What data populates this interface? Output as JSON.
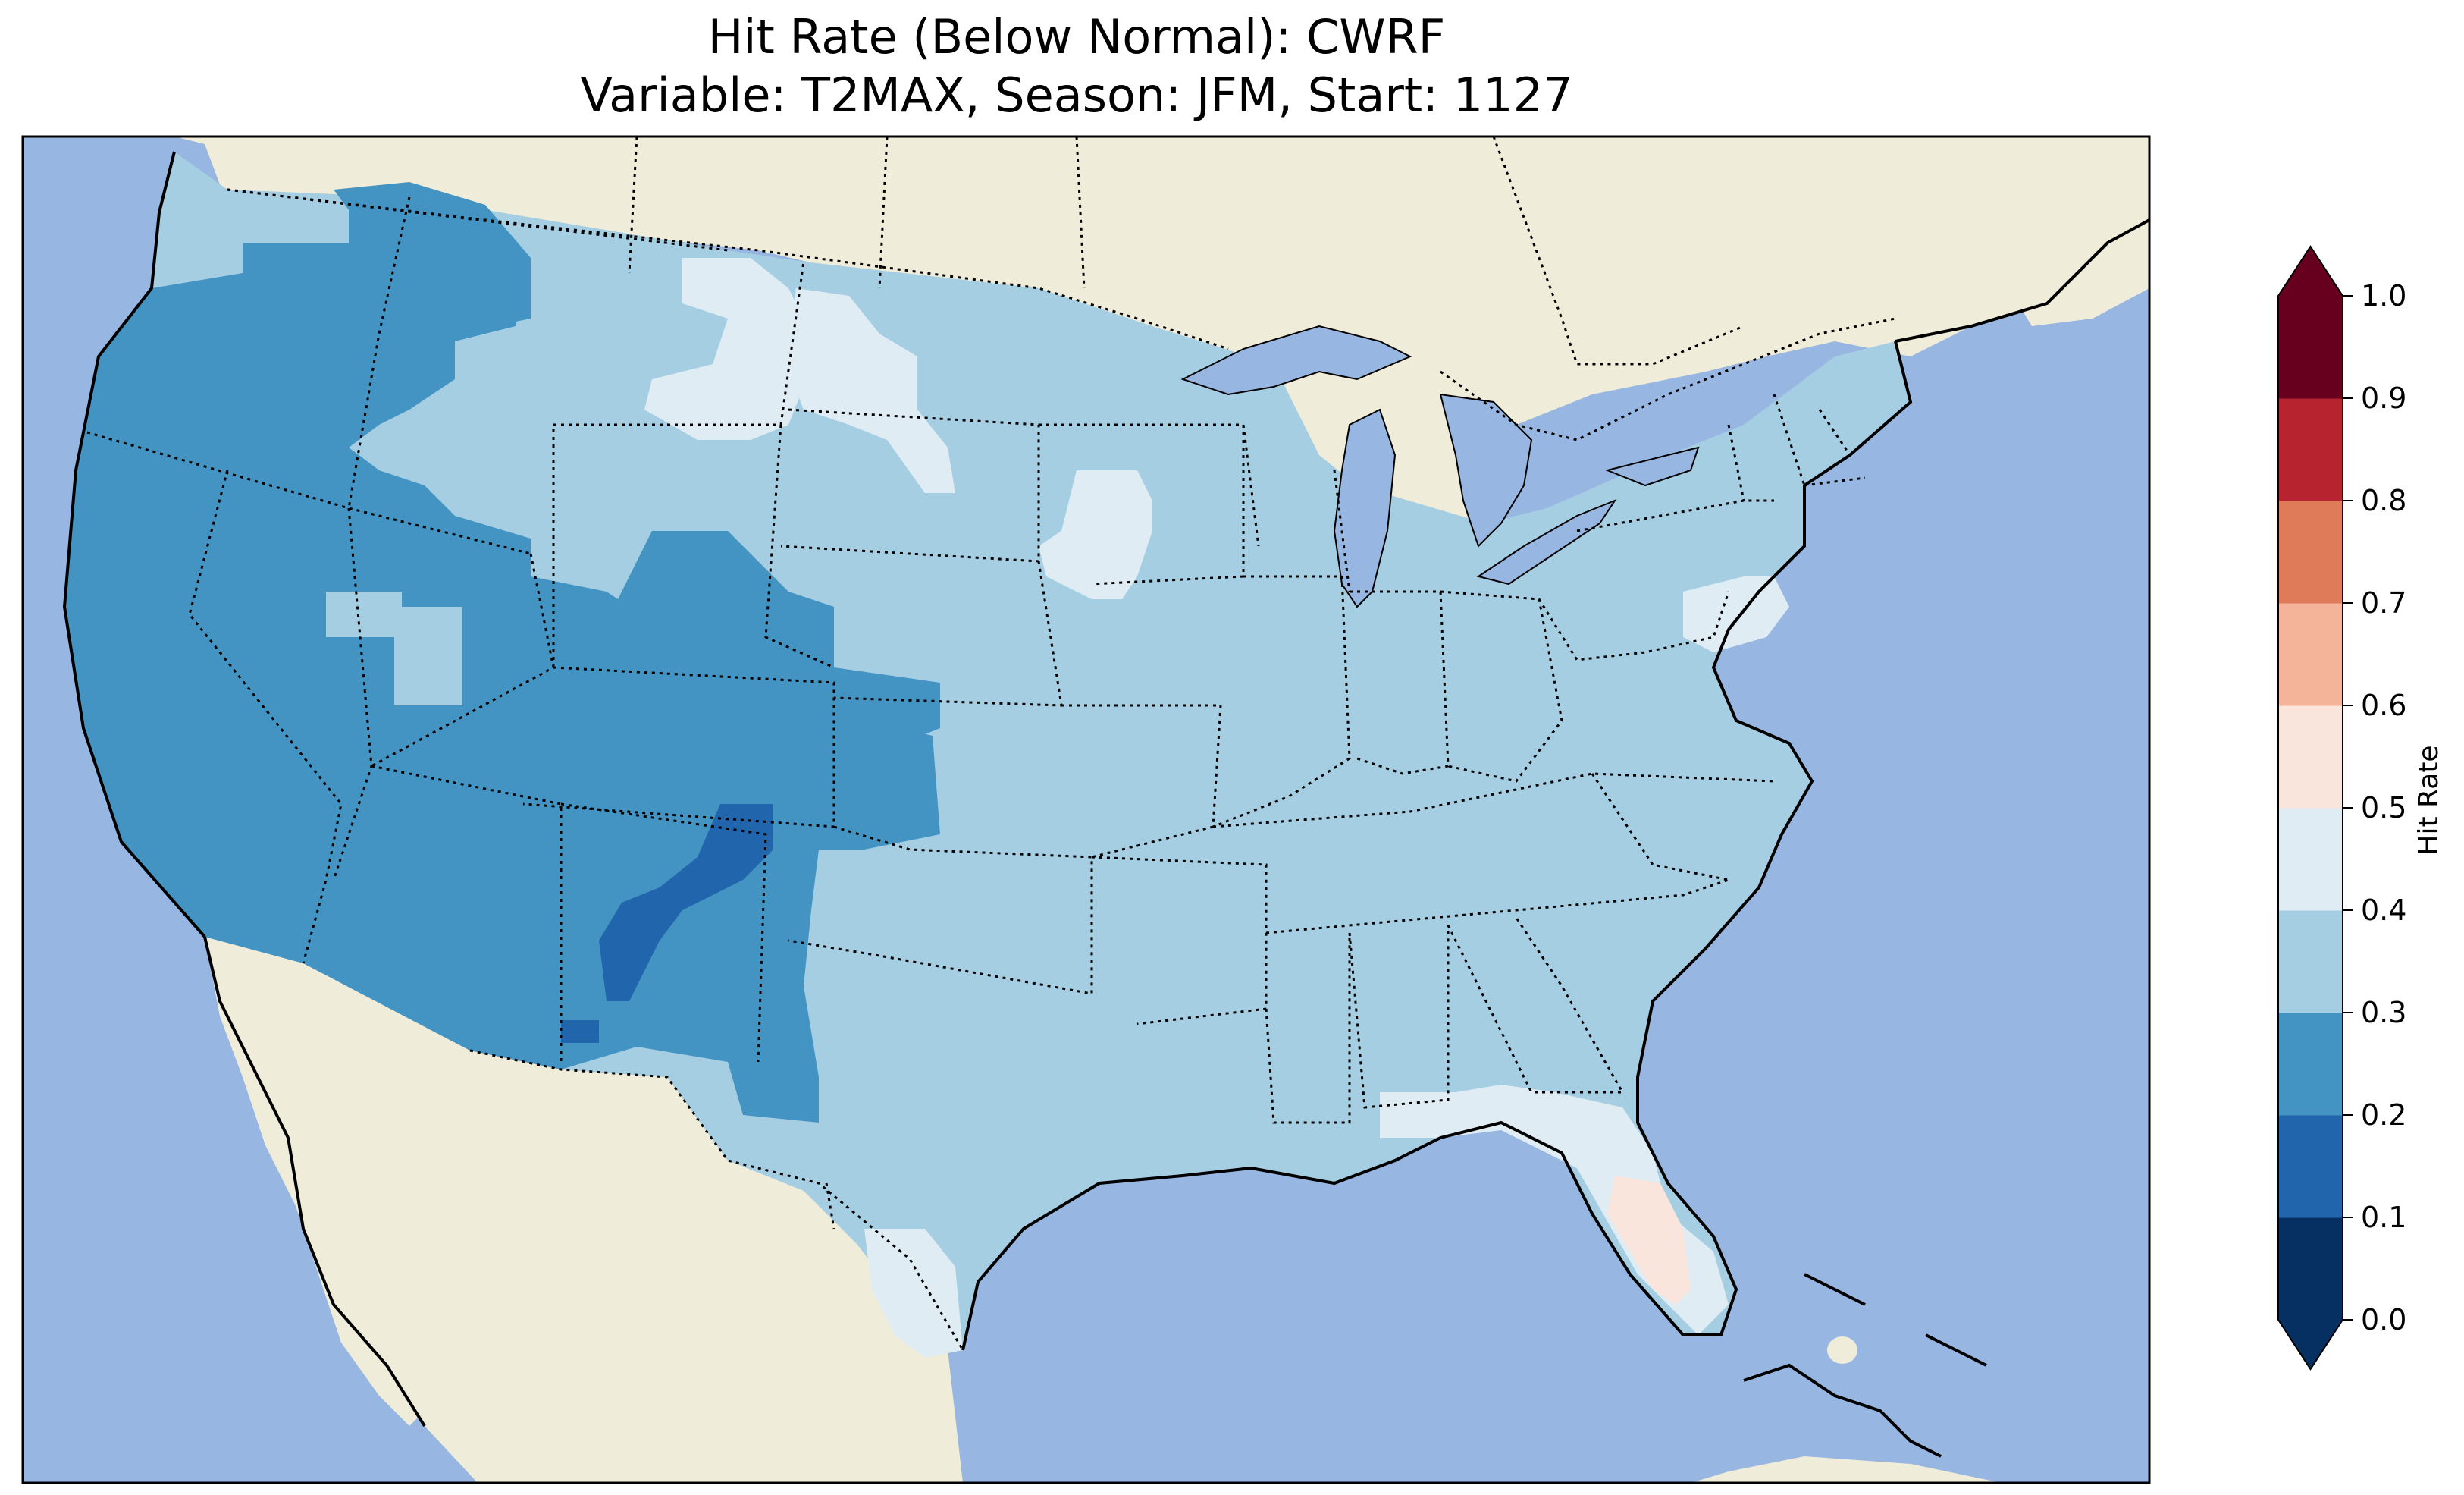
{
  "title": {
    "line1": "Hit Rate (Below Normal): CWRF",
    "line2": "Variable: T2MAX, Season: JFM, Start: 1127"
  },
  "colors": {
    "ocean": "#97b6e1",
    "land": "#efecda",
    "lakes": "#97b6e1",
    "coast": "#000000"
  },
  "colorbar": {
    "label": "Hit Rate",
    "ticks": [
      "0.0",
      "0.1",
      "0.2",
      "0.3",
      "0.4",
      "0.5",
      "0.6",
      "0.7",
      "0.8",
      "0.9",
      "1.0"
    ],
    "bins": [
      {
        "range": [
          0.0,
          0.1
        ],
        "color": "#053061"
      },
      {
        "range": [
          0.1,
          0.2
        ],
        "color": "#2166ac"
      },
      {
        "range": [
          0.2,
          0.3
        ],
        "color": "#4393c3"
      },
      {
        "range": [
          0.3,
          0.4
        ],
        "color": "#a6cee3"
      },
      {
        "range": [
          0.4,
          0.5
        ],
        "color": "#e0ecf4"
      },
      {
        "range": [
          0.5,
          0.6
        ],
        "color": "#f9e5dc"
      },
      {
        "range": [
          0.6,
          0.7
        ],
        "color": "#f4b49a"
      },
      {
        "range": [
          0.7,
          0.8
        ],
        "color": "#e07b5a"
      },
      {
        "range": [
          0.8,
          0.9
        ],
        "color": "#b7232f"
      },
      {
        "range": [
          0.9,
          1.0
        ],
        "color": "#67001f"
      }
    ],
    "under_color": "#053061",
    "over_color": "#67001f"
  },
  "map_regions": [
    {
      "name": "Pacific Northwest / Oregon-California-Nevada-Arizona-Utah",
      "bin": "0.2-0.3"
    },
    {
      "name": "New Mexico core",
      "bin": "0.1-0.2"
    },
    {
      "name": "Great Plains, Midwest, Southeast, Northeast",
      "bin": "0.3-0.4"
    },
    {
      "name": "Montana-Dakotas patches, Iowa/Minnesota, Pennsylvania-Maryland, South Texas, North Florida",
      "bin": "0.4-0.5"
    },
    {
      "name": "South Florida",
      "bin": "0.5-0.6"
    }
  ]
}
